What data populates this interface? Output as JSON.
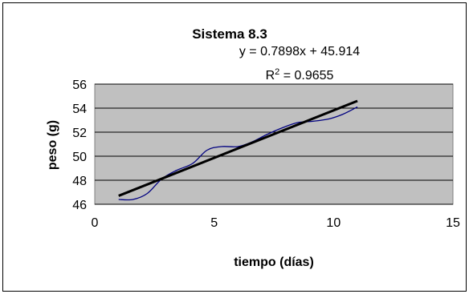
{
  "chart_data": {
    "type": "scatter",
    "title": "Sistema 8.3",
    "equation": "y = 0.7898x + 45.914",
    "r_squared_prefix": "R",
    "r_squared_exp": "2",
    "r_squared_value": " = 0.9655",
    "xlabel": "tiempo (días)",
    "ylabel": "peso (g)",
    "xlim": [
      0,
      15
    ],
    "ylim": [
      46,
      56
    ],
    "x_ticks": [
      0,
      5,
      10,
      15
    ],
    "y_ticks": [
      46,
      48,
      50,
      52,
      54,
      56
    ],
    "grid": "horizontal",
    "plot_background": "#c0c0c0",
    "series": [
      {
        "color": "#000080",
        "style": "smoothed-line",
        "x": [
          1,
          1.6,
          2.2,
          2.8,
          3.4,
          4.1,
          4.7,
          5.3,
          6.0,
          6.6,
          7.2,
          7.9,
          8.5,
          9.1,
          9.8,
          10.4,
          11
        ],
        "y": [
          46.4,
          46.4,
          46.9,
          48.1,
          48.8,
          49.4,
          50.5,
          50.8,
          50.8,
          51.2,
          51.8,
          52.4,
          52.8,
          52.9,
          53.1,
          53.5,
          54.1
        ]
      }
    ],
    "trendline": {
      "slope": 0.7898,
      "intercept": 45.914,
      "x_range": [
        1,
        11
      ],
      "color": "#000000"
    }
  }
}
